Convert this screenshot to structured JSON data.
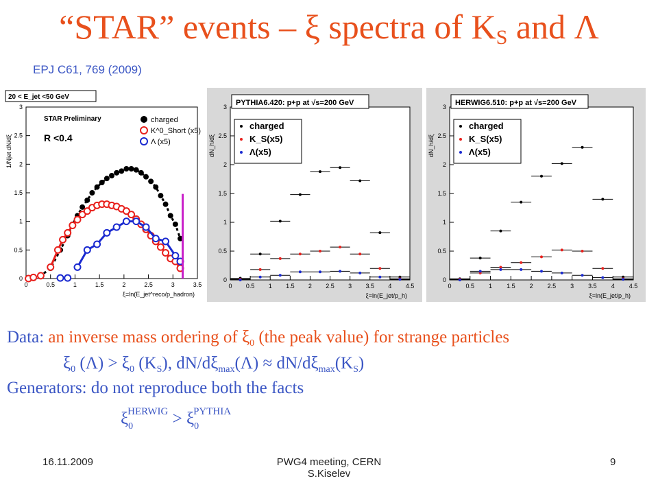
{
  "title": "“STAR” events – ξ spectra of K_S and Λ",
  "title_parts": {
    "lead": "“STAR” events – ξ spectra of K",
    "sub": "S",
    "tail": " and Λ"
  },
  "reference": "EPJ C61, 769 (2009)",
  "text": {
    "line1_a": "Data: ",
    "line1_b": "an inverse mass ordering of ξ",
    "line1_sub": "0",
    "line1_c": " (the peak value) for strange particles",
    "line2_a": "ξ",
    "line2_a_sub": "0",
    "line2_b": " (Λ) > ξ",
    "line2_b_sub": "0",
    "line2_c": " (K",
    "line2_c_sub": "S",
    "line2_d": "),    dN/dξ",
    "line2_d_sub": "max",
    "line2_e": "(Λ) ≈ dN/dξ",
    "line2_e_sub": "max",
    "line2_f": "(K",
    "line2_f_sub": "S",
    "line2_g": ")",
    "line3": "Generators: do not reproduce both the facts",
    "line4_a": "ξ",
    "line4_a_sub": "0",
    "line4_a_sup": "HERWIG",
    "line4_gt": " > ",
    "line4_b": "ξ",
    "line4_b_sub": "0",
    "line4_b_sup": "PYTHIA"
  },
  "footer": {
    "date": "16.11.2009",
    "center_line1": "PWG4 meeting, CERN",
    "center_line2": "S.Kiselev",
    "page": "9"
  },
  "colors": {
    "title": "#e8501c",
    "blue_text": "#3b56c4",
    "charged": "#000000",
    "ks": "#e8201c",
    "lambda": "#1a2ad0",
    "cut": "#c81ec8"
  },
  "chart_data": [
    {
      "type": "scatter",
      "header": "20 < E_jet <50 GeV",
      "label": "STAR Preliminary",
      "cut": "R <0.4",
      "xlabel": "ξ=ln(E_jet^reco/p_hadron)",
      "ylabel": "1/Njet dN/dξ",
      "xlim": [
        0,
        3.5
      ],
      "ylim": [
        0,
        3
      ],
      "xticks": [
        "0",
        "0.5",
        "1",
        "1.5",
        "2",
        "2.5",
        "3",
        "3.5"
      ],
      "yticks": [
        "0",
        "0.5",
        "1",
        "1.5",
        "2",
        "2.5",
        "3"
      ],
      "legend": [
        "charged",
        "K^0_Short (x5)",
        "Λ (x5)"
      ],
      "series": [
        {
          "name": "charged",
          "x": [
            0.05,
            0.15,
            0.3,
            0.5,
            0.7,
            0.85,
            0.95,
            1.05,
            1.15,
            1.25,
            1.35,
            1.45,
            1.55,
            1.65,
            1.75,
            1.85,
            1.95,
            2.05,
            2.15,
            2.25,
            2.35,
            2.45,
            2.55,
            2.65,
            2.75,
            2.85,
            2.95,
            3.05,
            3.15
          ],
          "y": [
            0.0,
            0.02,
            0.05,
            0.18,
            0.5,
            0.75,
            0.95,
            1.1,
            1.25,
            1.37,
            1.5,
            1.6,
            1.68,
            1.75,
            1.8,
            1.85,
            1.88,
            1.92,
            1.92,
            1.9,
            1.85,
            1.78,
            1.7,
            1.6,
            1.45,
            1.3,
            1.1,
            0.95,
            0.7
          ]
        },
        {
          "name": "K0 Short (x5)",
          "x": [
            0.05,
            0.15,
            0.3,
            0.5,
            0.65,
            0.75,
            0.85,
            0.95,
            1.05,
            1.15,
            1.25,
            1.35,
            1.45,
            1.55,
            1.65,
            1.75,
            1.85,
            1.95,
            2.05,
            2.15,
            2.25,
            2.35,
            2.45,
            2.55,
            2.65,
            2.75,
            2.85,
            2.95,
            3.05,
            3.15
          ],
          "y": [
            0.0,
            0.02,
            0.05,
            0.2,
            0.5,
            0.68,
            0.8,
            0.93,
            1.03,
            1.12,
            1.18,
            1.24,
            1.28,
            1.3,
            1.3,
            1.28,
            1.26,
            1.22,
            1.18,
            1.12,
            1.04,
            0.95,
            0.86,
            0.75,
            0.65,
            0.55,
            0.45,
            0.35,
            0.3,
            0.18
          ]
        },
        {
          "name": "Λ (x5)",
          "x": [
            0.7,
            0.85,
            1.05,
            1.25,
            1.45,
            1.65,
            1.85,
            2.05,
            2.25,
            2.45,
            2.65,
            2.85,
            3.05,
            3.15
          ],
          "y": [
            0.01,
            0.01,
            0.2,
            0.5,
            0.6,
            0.8,
            0.9,
            1.0,
            1.0,
            0.9,
            0.7,
            0.65,
            0.4,
            0.3
          ]
        }
      ]
    },
    {
      "type": "scatter",
      "header": "PYTHIA6.420: p+p at √s=200 GeV",
      "xlabel": "ξ=ln(E_jet/p_h)",
      "ylabel": "dN_h/dξ",
      "xlim": [
        0,
        4.5
      ],
      "ylim": [
        0,
        3
      ],
      "xticks": [
        "0",
        "0.5",
        "1",
        "1.5",
        "2",
        "2.5",
        "3",
        "3.5",
        "4",
        "4.5"
      ],
      "yticks": [
        "0",
        "0.5",
        "1",
        "1.5",
        "2",
        "2.5",
        "3"
      ],
      "legend": [
        "charged",
        "K_S(x5)",
        "Λ(x5)"
      ],
      "series": [
        {
          "name": "charged",
          "x": [
            0.25,
            0.75,
            1.25,
            1.75,
            2.25,
            2.75,
            3.25,
            3.75,
            4.25
          ],
          "y": [
            0.03,
            0.45,
            1.02,
            1.48,
            1.88,
            1.95,
            1.72,
            0.82,
            0.05
          ]
        },
        {
          "name": "K_S(x5)",
          "x": [
            0.25,
            0.75,
            1.25,
            1.75,
            2.25,
            2.75,
            3.25,
            3.75,
            4.25
          ],
          "y": [
            0.01,
            0.18,
            0.37,
            0.45,
            0.5,
            0.57,
            0.45,
            0.2,
            0.02
          ]
        },
        {
          "name": "Λ(x5)",
          "x": [
            0.25,
            0.75,
            1.25,
            1.75,
            2.25,
            2.75,
            3.25,
            3.75,
            4.25
          ],
          "y": [
            0.0,
            0.05,
            0.08,
            0.14,
            0.14,
            0.15,
            0.12,
            0.05,
            0.01
          ]
        }
      ]
    },
    {
      "type": "scatter",
      "header": "HERWIG6.510: p+p at √s=200 GeV",
      "xlabel": "ξ=ln(E_jet/p_h)",
      "ylabel": "dN_h/dξ",
      "xlim": [
        0,
        4.5
      ],
      "ylim": [
        0,
        3
      ],
      "xticks": [
        "0",
        "0.5",
        "1",
        "1.5",
        "2",
        "2.5",
        "3",
        "3.5",
        "4",
        "4.5"
      ],
      "yticks": [
        "0",
        "0.5",
        "1",
        "1.5",
        "2",
        "2.5",
        "3"
      ],
      "legend": [
        "charged",
        "K_S(x5)",
        "Λ(x5)"
      ],
      "series": [
        {
          "name": "charged",
          "x": [
            0.25,
            0.75,
            1.25,
            1.75,
            2.25,
            2.75,
            3.25,
            3.75,
            4.25
          ],
          "y": [
            0.02,
            0.38,
            0.85,
            1.35,
            1.8,
            2.02,
            2.3,
            1.4,
            0.05
          ]
        },
        {
          "name": "K_S(x5)",
          "x": [
            0.25,
            0.75,
            1.25,
            1.75,
            2.25,
            2.75,
            3.25,
            3.75,
            4.25
          ],
          "y": [
            0.01,
            0.12,
            0.22,
            0.3,
            0.4,
            0.52,
            0.5,
            0.2,
            0.02
          ]
        },
        {
          "name": "Λ(x5)",
          "x": [
            0.25,
            0.75,
            1.25,
            1.75,
            2.25,
            2.75,
            3.25,
            3.75,
            4.25
          ],
          "y": [
            0.0,
            0.15,
            0.18,
            0.18,
            0.15,
            0.12,
            0.08,
            0.04,
            0.01
          ]
        }
      ]
    }
  ]
}
